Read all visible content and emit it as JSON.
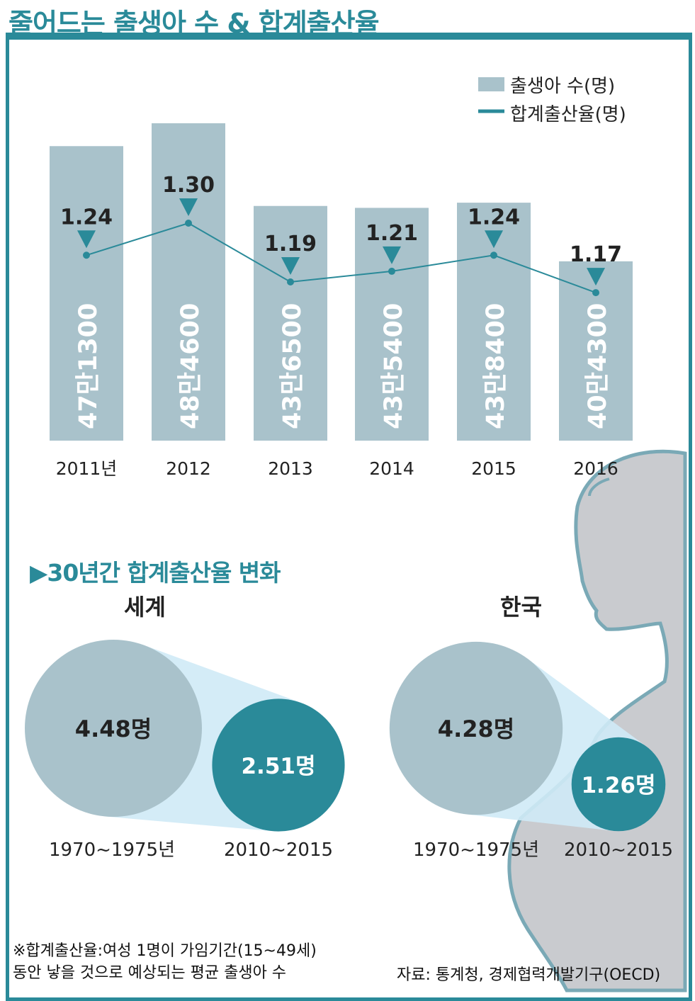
{
  "title": "줄어드는 출생아 수 & 합계출산율",
  "legend": {
    "bar_label": "출생아 수(명)",
    "line_label": "합계출산율(명)"
  },
  "colors": {
    "accent": "#2a8a99",
    "bar": "#a9c2cb",
    "light": "#cfeaf6",
    "silhouette_fill": "#c9cbcf",
    "silhouette_stroke": "#7aa9b6"
  },
  "chart_data": [
    {
      "type": "bar",
      "categories": [
        "2011년",
        "2012",
        "2013",
        "2014",
        "2015",
        "2016"
      ],
      "series": [
        {
          "name": "출생아 수(명)",
          "type": "bar",
          "values": [
            471300,
            484600,
            436500,
            435400,
            438400,
            404300
          ],
          "labels": [
            "47만1300",
            "48만4600",
            "43만6500",
            "43만5400",
            "43만8400",
            "40만4300"
          ]
        },
        {
          "name": "합계출산율(명)",
          "type": "line",
          "values": [
            1.24,
            1.3,
            1.19,
            1.21,
            1.24,
            1.17
          ],
          "labels": [
            "1.24",
            "1.30",
            "1.19",
            "1.21",
            "1.24",
            "1.17"
          ]
        }
      ]
    },
    {
      "type": "bubble",
      "title": "세계",
      "categories": [
        "1970~1975년",
        "2010~2015"
      ],
      "values": [
        4.48,
        2.51
      ],
      "labels": [
        "4.48명",
        "2.51명"
      ]
    },
    {
      "type": "bubble",
      "title": "한국",
      "categories": [
        "1970~1975년",
        "2010~2015"
      ],
      "values": [
        4.28,
        1.26
      ],
      "labels": [
        "4.28명",
        "1.26명"
      ]
    }
  ],
  "section_title": "▶30년간 합계출산율 변화",
  "footnote": {
    "line1": "※합계출산율:여성 1명이 가임기간(15~49세)",
    "line2": "동안 낳을 것으로 예상되는 평균 출생아 수"
  },
  "source": "자료: 통계청, 경제협력개발기구(OECD)"
}
